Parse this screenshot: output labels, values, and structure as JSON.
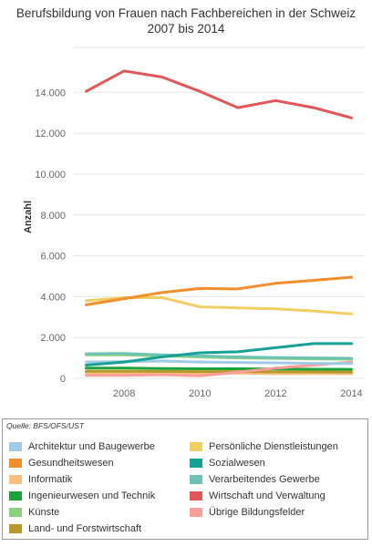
{
  "chart_data": {
    "type": "line",
    "title_lines": [
      "Berufsbildung von Frauen nach Fachbereichen in der Schweiz",
      "2007 bis 2014"
    ],
    "ylabel": "Anzahl",
    "xlabel": "",
    "x": [
      2007,
      2008,
      2009,
      2010,
      2011,
      2012,
      2013,
      2014
    ],
    "xticks": [
      2008,
      2010,
      2012,
      2014
    ],
    "xtick_labels": [
      "2008",
      "2010",
      "2012",
      "2014"
    ],
    "yticks": [
      0,
      2000,
      4000,
      6000,
      8000,
      10000,
      12000,
      14000
    ],
    "ytick_labels": [
      "0",
      "2.000",
      "4.000",
      "6.000",
      "8.000",
      "10.000",
      "12.000",
      "14.000"
    ],
    "xlim": [
      2006.65,
      2014.35
    ],
    "ylim": [
      -400,
      16200
    ],
    "grid": "horizontal",
    "legend_position": "bottom",
    "source": "Quelle: BFS/OFS/UST",
    "series": [
      {
        "name": "Architektur und Baugewerbe",
        "color": "#9fcbe6",
        "values": [
          800,
          820,
          850,
          800,
          780,
          760,
          740,
          720
        ]
      },
      {
        "name": "Gesundheitswesen",
        "color": "#f28e2b",
        "values": [
          3600,
          3900,
          4200,
          4400,
          4380,
          4650,
          4800,
          4950
        ]
      },
      {
        "name": "Informatik",
        "color": "#ffbe7d",
        "values": [
          250,
          260,
          240,
          220,
          260,
          230,
          240,
          230
        ]
      },
      {
        "name": "Ingenieurwesen und Technik",
        "color": "#1ea33a",
        "values": [
          500,
          500,
          480,
          470,
          470,
          460,
          450,
          440
        ]
      },
      {
        "name": "Künste",
        "color": "#8cd17d",
        "values": [
          1150,
          1150,
          1100,
          1050,
          1000,
          980,
          950,
          940
        ]
      },
      {
        "name": "Land- und Forstwirtschaft",
        "color": "#b6992d",
        "values": [
          350,
          350,
          340,
          330,
          330,
          320,
          320,
          310
        ]
      },
      {
        "name": "Persönliche Dienstleistungen",
        "color": "#f1ce63",
        "values": [
          3800,
          3950,
          3950,
          3500,
          3450,
          3400,
          3300,
          3150
        ]
      },
      {
        "name": "Sozialwesen",
        "color": "#17a096",
        "values": [
          650,
          800,
          1050,
          1250,
          1300,
          1500,
          1700,
          1700
        ]
      },
      {
        "name": "Verarbeitendes Gewerbe",
        "color": "#6cc3b5",
        "values": [
          1200,
          1220,
          1150,
          1100,
          1050,
          1020,
          1000,
          980
        ]
      },
      {
        "name": "Wirtschaft und Verwaltung",
        "color": "#e15759",
        "values": [
          14050,
          15050,
          14750,
          14050,
          13250,
          13600,
          13250,
          12750
        ]
      },
      {
        "name": "Übrige Bildungsfelder",
        "color": "#ff9d9a",
        "values": [
          150,
          150,
          180,
          120,
          300,
          500,
          650,
          800
        ]
      }
    ]
  }
}
